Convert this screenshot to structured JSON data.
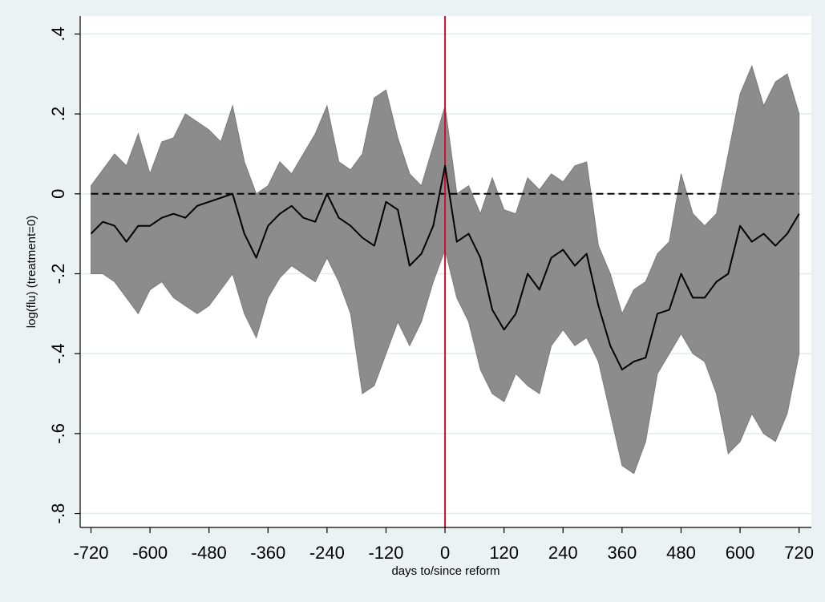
{
  "chart_data": {
    "type": "area",
    "title": "",
    "xlabel": "days to/since reform",
    "ylabel": "log(flu) (treatment=0)",
    "xlim": [
      -742,
      745
    ],
    "ylim": [
      -0.835,
      0.445
    ],
    "x_ticks": [
      -720,
      -600,
      -480,
      -360,
      -240,
      -120,
      0,
      120,
      240,
      360,
      480,
      600,
      720
    ],
    "y_ticks": [
      0.4,
      0.2,
      0,
      -0.2,
      -0.4,
      -0.6,
      -0.8
    ],
    "x_tick_labels": [
      "-720",
      "-600",
      "-480",
      "-360",
      "-240",
      "-120",
      "0",
      "120",
      "240",
      "360",
      "480",
      "600",
      "720"
    ],
    "y_tick_labels": [
      ".4",
      ".2",
      "0",
      "-.2",
      "-.4",
      "-.6",
      "-.8"
    ],
    "grid": "horizontal",
    "reference_lines": [
      {
        "axis": "x",
        "value": 0,
        "color": "#c8102e",
        "style": "solid"
      },
      {
        "axis": "y",
        "value": 0,
        "color": "#000000",
        "style": "dashed"
      }
    ],
    "colors": {
      "background": "#eaf2f3",
      "plot_area": "#ffffff",
      "band_fill": "#8c8c8c",
      "band_edge": "#7a7a7a",
      "line": "#000000",
      "grid": "#e1ebec"
    },
    "x": [
      -720,
      -696,
      -672,
      -648,
      -624,
      -600,
      -576,
      -552,
      -528,
      -504,
      -480,
      -456,
      -432,
      -408,
      -384,
      -360,
      -336,
      -312,
      -288,
      -264,
      -240,
      -216,
      -192,
      -168,
      -144,
      -120,
      -96,
      -72,
      -48,
      -24,
      0,
      24,
      48,
      72,
      96,
      120,
      144,
      168,
      192,
      216,
      240,
      264,
      288,
      312,
      336,
      360,
      384,
      408,
      432,
      456,
      480,
      504,
      528,
      552,
      576,
      600,
      624,
      648,
      672,
      696,
      720
    ],
    "series": [
      {
        "name": "",
        "role": "point estimate",
        "values": [
          -0.1,
          -0.07,
          -0.08,
          -0.12,
          -0.08,
          -0.08,
          -0.06,
          -0.05,
          -0.06,
          -0.03,
          -0.02,
          -0.01,
          0.0,
          -0.1,
          -0.16,
          -0.08,
          -0.05,
          -0.03,
          -0.06,
          -0.07,
          0.0,
          -0.06,
          -0.08,
          -0.11,
          -0.13,
          -0.02,
          -0.04,
          -0.18,
          -0.15,
          -0.08,
          0.07,
          -0.12,
          -0.1,
          -0.16,
          -0.29,
          -0.34,
          -0.3,
          -0.2,
          -0.24,
          -0.16,
          -0.14,
          -0.18,
          -0.15,
          -0.28,
          -0.38,
          -0.44,
          -0.42,
          -0.41,
          -0.3,
          -0.29,
          -0.2,
          -0.26,
          -0.26,
          -0.22,
          -0.2,
          -0.08,
          -0.12,
          -0.1,
          -0.13,
          -0.1,
          -0.05
        ]
      }
    ],
    "band": {
      "name": "",
      "role": "confidence interval",
      "upper": [
        0.02,
        0.06,
        0.1,
        0.07,
        0.15,
        0.05,
        0.13,
        0.14,
        0.2,
        0.18,
        0.16,
        0.13,
        0.22,
        0.08,
        0.0,
        0.02,
        0.08,
        0.05,
        0.1,
        0.15,
        0.22,
        0.08,
        0.06,
        0.1,
        0.24,
        0.26,
        0.14,
        0.05,
        0.02,
        0.12,
        0.22,
        0.0,
        0.02,
        -0.05,
        0.04,
        -0.04,
        -0.05,
        0.04,
        0.01,
        0.05,
        0.03,
        0.07,
        0.08,
        -0.13,
        -0.2,
        -0.3,
        -0.24,
        -0.22,
        -0.15,
        -0.12,
        0.05,
        -0.05,
        -0.08,
        -0.05,
        0.1,
        0.25,
        0.32,
        0.22,
        0.28,
        0.3,
        0.2
      ],
      "lower": [
        -0.2,
        -0.2,
        -0.22,
        -0.26,
        -0.3,
        -0.24,
        -0.22,
        -0.26,
        -0.28,
        -0.3,
        -0.28,
        -0.24,
        -0.2,
        -0.3,
        -0.36,
        -0.26,
        -0.21,
        -0.18,
        -0.2,
        -0.22,
        -0.16,
        -0.22,
        -0.3,
        -0.5,
        -0.48,
        -0.4,
        -0.32,
        -0.38,
        -0.32,
        -0.22,
        -0.14,
        -0.26,
        -0.32,
        -0.44,
        -0.5,
        -0.52,
        -0.45,
        -0.48,
        -0.5,
        -0.38,
        -0.34,
        -0.38,
        -0.36,
        -0.42,
        -0.55,
        -0.68,
        -0.7,
        -0.62,
        -0.45,
        -0.4,
        -0.35,
        -0.4,
        -0.42,
        -0.5,
        -0.65,
        -0.62,
        -0.55,
        -0.6,
        -0.62,
        -0.55,
        -0.4
      ]
    }
  }
}
